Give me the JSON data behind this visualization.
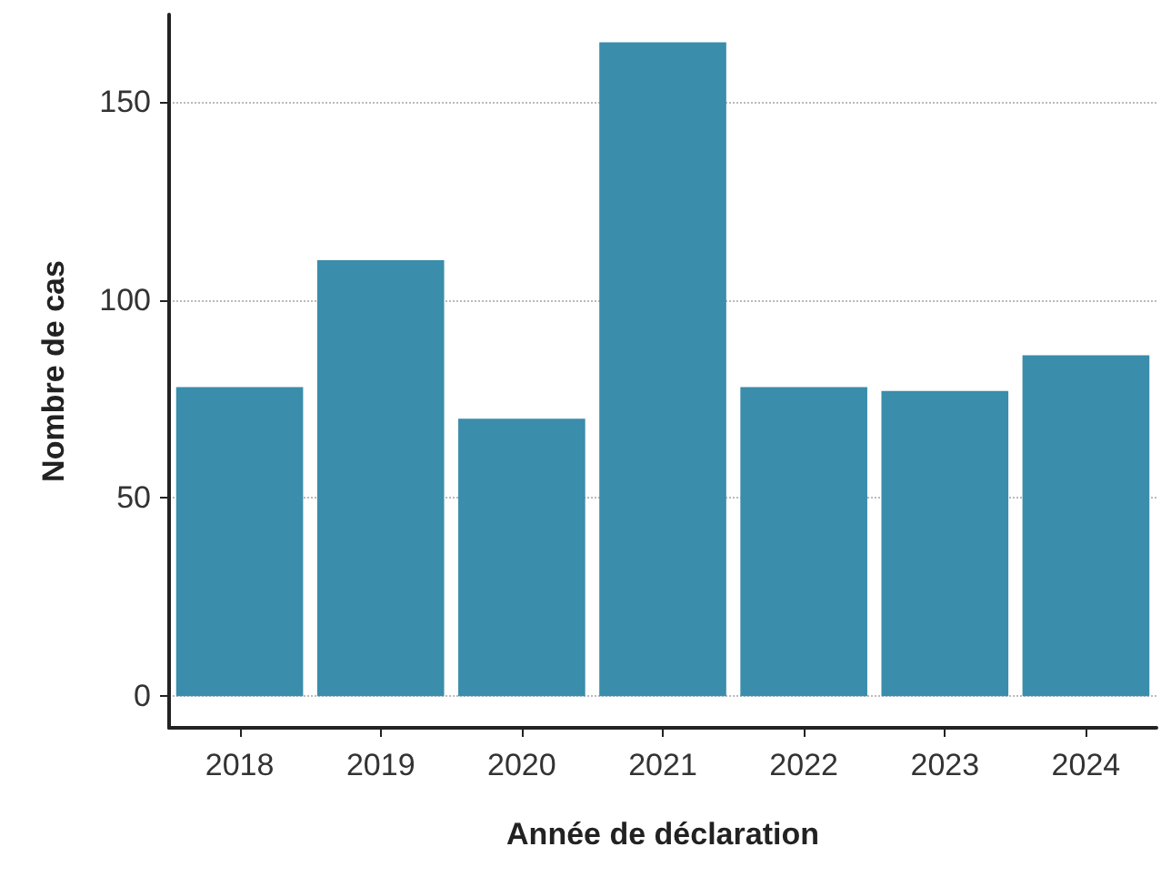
{
  "chart_data": {
    "type": "bar",
    "xlabel": "Année de déclaration",
    "ylabel": "Nombre de cas",
    "categories": [
      "2018",
      "2019",
      "2020",
      "2021",
      "2022",
      "2023",
      "2024"
    ],
    "values": [
      78,
      110,
      70,
      165,
      78,
      77,
      86
    ],
    "color": "#3a8dab",
    "ylim": [
      -8,
      172
    ],
    "yticks": [
      0,
      50,
      100,
      150
    ],
    "grid": "y"
  }
}
